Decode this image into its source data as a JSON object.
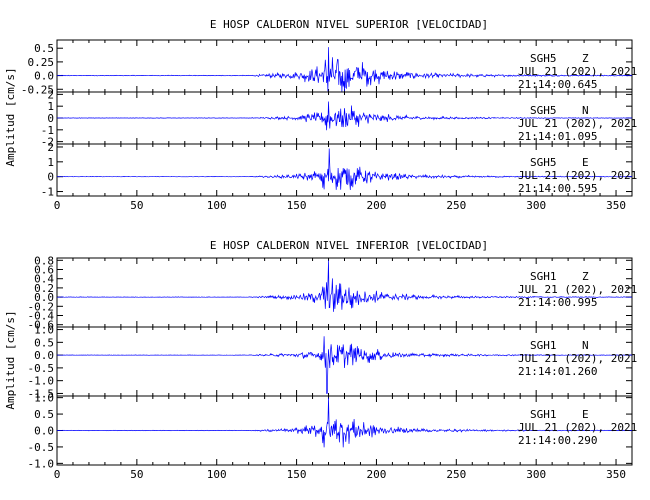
{
  "chart_data": [
    {
      "type": "line",
      "title": "E HOSP CALDERON NIVEL SUPERIOR [VELOCIDAD]",
      "ylabel": "Amplitud [cm/s]",
      "xlabel": "",
      "xlim": [
        0,
        360
      ],
      "xticks": [
        0,
        50,
        100,
        150,
        200,
        250,
        300,
        350
      ],
      "color": "#0000ff",
      "panels": [
        {
          "station": "SGH5",
          "component": "Z",
          "date": "JUL 21 (202), 2021",
          "time": "21:14:00.645",
          "ylim": [
            -0.3,
            0.65
          ],
          "yticks": [
            -0.25,
            0.0,
            0.25,
            0.5
          ],
          "ytick_labels": [
            "-0.25",
            "0.0",
            "0.25",
            "0.5"
          ],
          "peak": 0.6,
          "pga": 0.52,
          "pga_time": 170.0
        },
        {
          "station": "SGH5",
          "component": "N",
          "date": "JUL 21 (202), 2021",
          "time": "21:14:01.095",
          "ylim": [
            -2.2,
            2.2
          ],
          "yticks": [
            -2,
            -1,
            0,
            1,
            2
          ],
          "ytick_labels": [
            "-2",
            "-1",
            "0",
            "1",
            "2"
          ],
          "peak": 1.6,
          "pga": 1.4,
          "pga_time": 170.0
        },
        {
          "station": "SGH5",
          "component": "E",
          "date": "JUL 21 (202), 2021",
          "time": "21:14:00.595",
          "ylim": [
            -1.3,
            2.2
          ],
          "yticks": [
            -1,
            0,
            1,
            2
          ],
          "ytick_labels": [
            "-1",
            "0",
            "1",
            "2"
          ],
          "peak": 1.4,
          "pga": 1.9,
          "pga_time": 170.5
        }
      ]
    },
    {
      "type": "line",
      "title": "E HOSP CALDERON NIVEL INFERIOR [VELOCIDAD]",
      "ylabel": "Amplitud [cm/s]",
      "xlabel": "",
      "xlim": [
        0,
        360
      ],
      "xticks": [
        0,
        50,
        100,
        150,
        200,
        250,
        300,
        350
      ],
      "color": "#0000ff",
      "panels": [
        {
          "station": "SGH1",
          "component": "Z",
          "date": "JUL 21 (202), 2021",
          "time": "21:14:00.995",
          "ylim": [
            -0.65,
            0.85
          ],
          "yticks": [
            -0.6,
            -0.4,
            -0.2,
            0.0,
            0.2,
            0.4,
            0.6,
            0.8
          ],
          "ytick_labels": [
            "-0.6",
            "-0.4",
            "-0.2",
            "0.0",
            "0.2",
            "0.4",
            "0.6",
            "0.8"
          ],
          "peak": 0.5,
          "pga": 0.8,
          "pga_time": 170.0
        },
        {
          "station": "SGH1",
          "component": "N",
          "date": "JUL 21 (202), 2021",
          "time": "21:14:01.260",
          "ylim": [
            -1.6,
            1.1
          ],
          "yticks": [
            -1.5,
            -1.0,
            -0.5,
            0.0,
            0.5,
            1.0
          ],
          "ytick_labels": [
            "-1.5",
            "-1.0",
            "-0.5",
            "0.0",
            "0.5",
            "1.0"
          ],
          "peak": 0.8,
          "pga": -1.5,
          "pga_time": 169.0
        },
        {
          "station": "SGH1",
          "component": "E",
          "date": "JUL 21 (202), 2021",
          "time": "21:14:00.290",
          "ylim": [
            -1.05,
            1.05
          ],
          "yticks": [
            -1.0,
            -0.5,
            0.0,
            0.5,
            1.0
          ],
          "ytick_labels": [
            "-1.0",
            "-0.5",
            "0.0",
            "0.5",
            "1.0"
          ],
          "peak": 0.7,
          "pga": 1.0,
          "pga_time": 170.0
        }
      ]
    }
  ]
}
